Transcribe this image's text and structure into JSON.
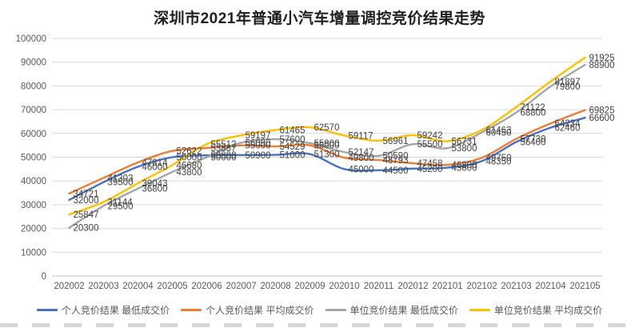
{
  "chart_data": {
    "type": "line",
    "title": "深圳市2021年普通小汽车增量调控竞价结果走势",
    "categories": [
      "202002",
      "202003",
      "202004",
      "202005",
      "202006",
      "202007",
      "202008",
      "202009",
      "202010",
      "202011",
      "202012",
      "202101",
      "202102",
      "202103",
      "202104",
      "202105"
    ],
    "xlabel": "",
    "ylabel": "",
    "ylim": [
      0,
      100000
    ],
    "yticks": [
      0,
      10000,
      20000,
      30000,
      40000,
      50000,
      60000,
      70000,
      80000,
      90000,
      100000
    ],
    "grid": true,
    "smooth_lines": true,
    "data_labels": true,
    "legend_position": "bottom",
    "axis_text_color": "#595959",
    "data_label_color": "#404040",
    "gridline_color": "#d9d9d9",
    "series": [
      {
        "name": "个人竞价结果 最低成交价",
        "color": "#4472C4",
        "values": [
          32000,
          39500,
          46000,
          50000,
          50800,
          50900,
          51000,
          51300,
          45000,
          44500,
          45200,
          45600,
          48350,
          56400,
          62460,
          66600
        ]
      },
      {
        "name": "个人竞价结果 平均成交价",
        "color": "#ED7D31",
        "values": [
          34721,
          41303,
          47814,
          52622,
          53887,
          55000,
          54529,
          55000,
          49800,
          48793,
          47458,
          46800,
          49750,
          57730,
          64234,
          69825
        ]
      },
      {
        "name": "单位竞价结果 最低成交价",
        "color": "#A5A5A5",
        "values": [
          20300,
          29500,
          36800,
          43800,
          50000,
          56090,
          57600,
          55900,
          52147,
          50590,
          55500,
          53800,
          60450,
          68800,
          79800,
          88900
        ]
      },
      {
        "name": "单位竞价结果 平均成交价",
        "color": "#FFC000",
        "values": [
          25847,
          31144,
          39043,
          46680,
          55512,
          59197,
          61465,
          62570,
          59117,
          56961,
          59242,
          56731,
          61463,
          71122,
          81897,
          91925
        ]
      }
    ]
  }
}
